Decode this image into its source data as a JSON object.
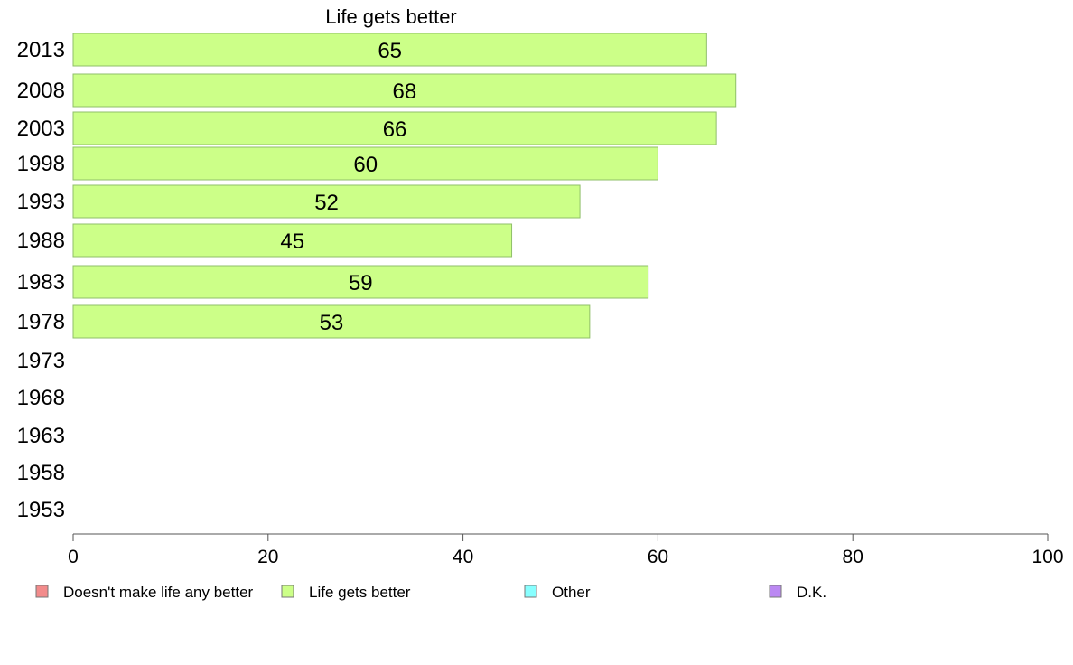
{
  "chart_data": {
    "type": "bar",
    "orientation": "horizontal",
    "title": "Life gets better",
    "categories": [
      "2013",
      "2008",
      "2003",
      "1998",
      "1993",
      "1988",
      "1983",
      "1978",
      "1973",
      "1968",
      "1963",
      "1958",
      "1953"
    ],
    "series": [
      {
        "name": "Life gets better",
        "color": "#ccff88",
        "values": [
          65,
          68,
          66,
          60,
          52,
          45,
          59,
          53,
          null,
          null,
          null,
          null,
          null
        ]
      }
    ],
    "xlim": [
      0,
      100
    ],
    "xticks": [
      "0",
      "20",
      "40",
      "60",
      "80",
      "100"
    ],
    "grid": false,
    "legend_position": "bottom",
    "legend": [
      {
        "label": "Doesn't make life any better",
        "color": "#f28b8b"
      },
      {
        "label": "Life gets better",
        "color": "#ccff88"
      },
      {
        "label": "Other",
        "color": "#88ffff"
      },
      {
        "label": "D.K.",
        "color": "#bb88f2"
      }
    ]
  }
}
